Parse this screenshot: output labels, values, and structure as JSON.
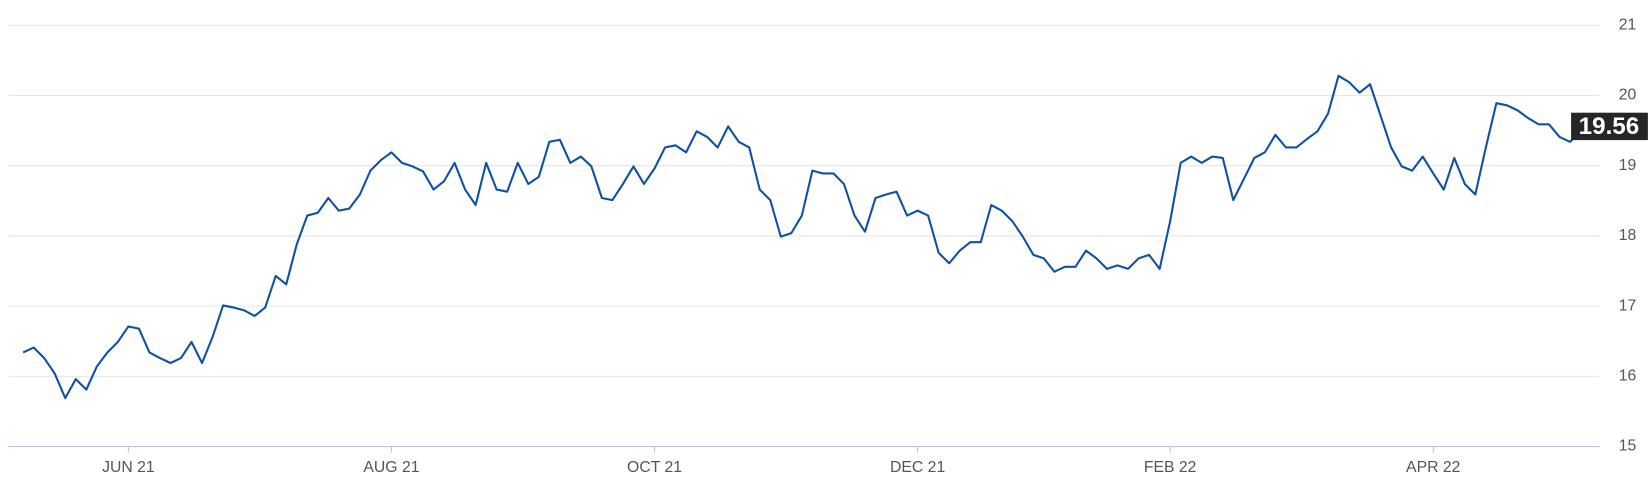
{
  "chart_data": {
    "type": "line",
    "categories": [
      null,
      null,
      null,
      null,
      null,
      null,
      null,
      null,
      null,
      null,
      "JUN 21",
      null,
      null,
      null,
      null,
      null,
      null,
      null,
      null,
      null,
      null,
      null,
      null,
      null,
      null,
      null,
      null,
      null,
      null,
      null,
      null,
      null,
      null,
      null,
      null,
      "AUG 21",
      null,
      null,
      null,
      null,
      null,
      null,
      null,
      null,
      null,
      null,
      null,
      null,
      null,
      null,
      null,
      null,
      null,
      null,
      null,
      null,
      null,
      null,
      null,
      null,
      "OCT 21",
      null,
      null,
      null,
      null,
      null,
      null,
      null,
      null,
      null,
      null,
      null,
      null,
      null,
      null,
      null,
      null,
      null,
      null,
      null,
      null,
      null,
      null,
      null,
      null,
      "DEC 21",
      null,
      null,
      null,
      null,
      null,
      null,
      null,
      null,
      null,
      null,
      null,
      null,
      null,
      null,
      null,
      null,
      null,
      null,
      null,
      null,
      null,
      null,
      null,
      "FEB 22",
      null,
      null,
      null,
      null,
      null,
      null,
      null,
      null,
      null,
      null,
      null,
      null,
      null,
      null,
      null,
      null,
      null,
      null,
      null,
      null,
      null,
      null,
      null,
      null,
      "APR 22",
      null,
      null,
      null,
      null,
      null,
      null,
      null,
      null,
      null,
      null,
      null,
      null,
      null,
      null,
      null
    ],
    "series": [
      {
        "color": "#0f52a3",
        "values": [
          16.34,
          16.41,
          16.26,
          16.04,
          15.69,
          15.96,
          15.81,
          16.14,
          16.34,
          16.49,
          16.71,
          16.68,
          16.34,
          16.26,
          16.19,
          16.26,
          16.49,
          16.19,
          16.56,
          17.01,
          16.98,
          16.94,
          16.86,
          16.98,
          17.43,
          17.31,
          17.88,
          18.29,
          18.33,
          18.54,
          18.36,
          18.39,
          18.59,
          18.93,
          19.08,
          19.19,
          19.04,
          18.99,
          18.92,
          18.66,
          18.78,
          19.04,
          18.66,
          18.44,
          19.04,
          18.66,
          18.63,
          19.04,
          18.74,
          18.84,
          19.34,
          19.37,
          19.04,
          19.13,
          18.99,
          18.54,
          18.51,
          18.74,
          18.99,
          18.74,
          18.96,
          19.26,
          19.29,
          19.19,
          19.49,
          19.41,
          19.26,
          19.56,
          19.34,
          19.26,
          18.66,
          18.51,
          17.99,
          18.04,
          18.29,
          18.93,
          18.89,
          18.89,
          18.74,
          18.29,
          18.06,
          18.54,
          18.59,
          18.63,
          18.29,
          18.36,
          18.29,
          17.76,
          17.61,
          17.79,
          17.91,
          17.91,
          18.44,
          18.36,
          18.21,
          17.99,
          17.73,
          17.68,
          17.49,
          17.56,
          17.56,
          17.79,
          17.68,
          17.53,
          17.58,
          17.53,
          17.68,
          17.73,
          17.53,
          18.21,
          19.04,
          19.13,
          19.04,
          19.13,
          19.11,
          18.51,
          18.81,
          19.11,
          19.19,
          19.44,
          19.26,
          19.26,
          19.38,
          19.49,
          19.74,
          20.28,
          20.19,
          20.04,
          20.16,
          19.71,
          19.26,
          18.99,
          18.93,
          19.13,
          18.89,
          18.66,
          19.11,
          18.74,
          18.59,
          19.26,
          19.89,
          19.86,
          19.79,
          19.68,
          19.59,
          19.59,
          19.41,
          19.34,
          19.49,
          19.56
        ]
      }
    ],
    "ylim": [
      15,
      21
    ],
    "yticks": [
      15,
      16,
      17,
      18,
      19,
      20,
      21
    ],
    "grid": true
  }
}
